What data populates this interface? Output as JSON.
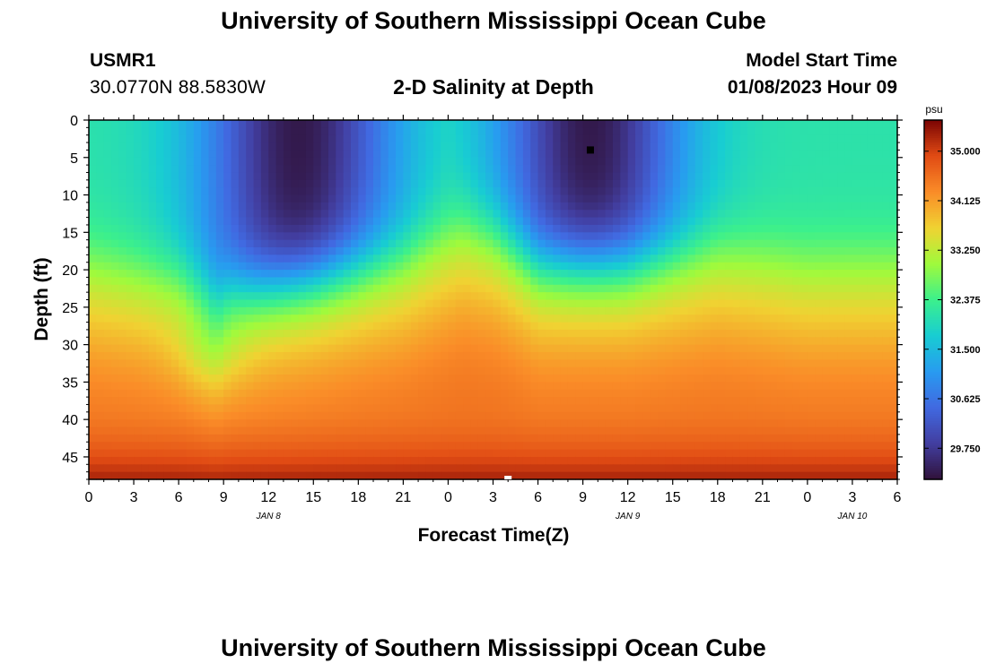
{
  "header": {
    "title": "University of Southern Mississippi Ocean Cube",
    "station": "USMR1",
    "coords": "30.0770N  88.5830W",
    "subtitle": "2-D Salinity at Depth",
    "model_start_label": "Model Start Time",
    "model_start_value": "01/08/2023 Hour 09"
  },
  "footer": {
    "title": "University of Southern Mississippi Ocean Cube"
  },
  "chart_data": {
    "type": "heatmap",
    "title": "2-D Salinity at Depth",
    "xlabel": "Forecast Time(Z)",
    "ylabel": "Depth (ft)",
    "x_ticks": [
      "0",
      "3",
      "6",
      "9",
      "12",
      "15",
      "18",
      "21",
      "0",
      "3",
      "6",
      "9",
      "12",
      "15",
      "18",
      "21",
      "0",
      "3",
      "6"
    ],
    "x_range_hours": [
      0,
      54
    ],
    "date_labels": [
      {
        "hour": 12,
        "label": "JAN 8"
      },
      {
        "hour": 36,
        "label": "JAN 9"
      },
      {
        "hour": 51,
        "label": "JAN 10"
      }
    ],
    "y_ticks": [
      0,
      5,
      10,
      15,
      20,
      25,
      30,
      35,
      40,
      45
    ],
    "ylim": [
      0,
      48
    ],
    "y_inverted": true,
    "colorbar": {
      "unit": "psu",
      "ticks": [
        "35.000",
        "34.125",
        "33.250",
        "32.375",
        "31.500",
        "30.625",
        "29.750"
      ],
      "range": [
        29.2,
        35.55
      ]
    },
    "salinity_model": {
      "deep_value_ft48": 35.4,
      "halocline_center_ft": [
        {
          "hour": 0,
          "depth": 19
        },
        {
          "hour": 6,
          "depth": 21
        },
        {
          "hour": 8.5,
          "depth": 24.5
        },
        {
          "hour": 9.5,
          "depth": 23
        },
        {
          "hour": 15,
          "depth": 21
        },
        {
          "hour": 21,
          "depth": 18
        },
        {
          "hour": 25,
          "depth": 14
        },
        {
          "hour": 27,
          "depth": 15
        },
        {
          "hour": 30,
          "depth": 19
        },
        {
          "hour": 36,
          "depth": 19
        },
        {
          "hour": 42,
          "depth": 17
        },
        {
          "hour": 48,
          "depth": 19
        },
        {
          "hour": 54,
          "depth": 19
        }
      ],
      "surface_low_events": [
        {
          "hour": 14,
          "depth_ft": 3,
          "min_psu": 29.3
        },
        {
          "hour": 33.5,
          "depth_ft": 4,
          "min_psu": 29.3
        }
      ]
    },
    "markers": [
      {
        "hour": 33.5,
        "depth": 4,
        "color": "#000000"
      },
      {
        "hour": 28,
        "depth": 48,
        "color": "#ffffff"
      }
    ]
  }
}
